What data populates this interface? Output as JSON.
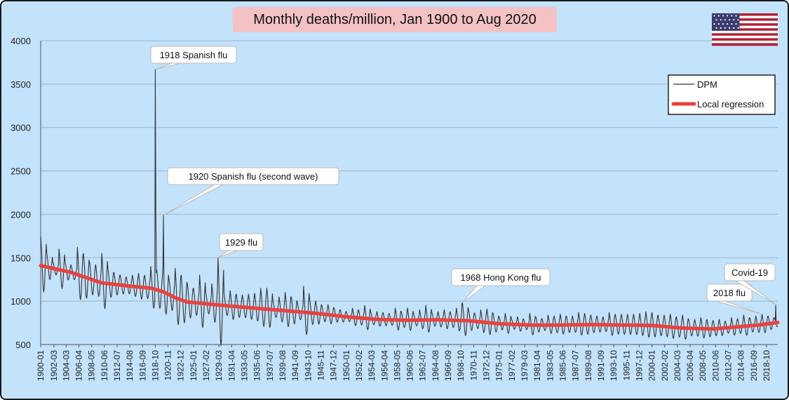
{
  "chart_data": {
    "type": "line",
    "title": "Monthly deaths/million, Jan 1900 to Aug 2020",
    "xlabel": "",
    "ylabel": "",
    "ylim": [
      500,
      4000
    ],
    "yticks": [
      500,
      1000,
      1500,
      2000,
      2500,
      3000,
      3500,
      4000
    ],
    "xlim": [
      "1900-01",
      "2020-08"
    ],
    "xticks": [
      "1900-01",
      "1902-03",
      "1904-03",
      "1906-04",
      "1908-05",
      "1910-06",
      "1912-07",
      "1914-08",
      "1916-09",
      "1918-10",
      "1920-11",
      "1922-12",
      "1925-01",
      "1927-02",
      "1929-03",
      "1931-04",
      "1933-05",
      "1935-06",
      "1937-07",
      "1939-08",
      "1941-09",
      "1943-10",
      "1945-11",
      "1947-12",
      "1950-01",
      "1952-02",
      "1954-03",
      "1956-04",
      "1958-05",
      "1960-06",
      "1962-07",
      "1964-08",
      "1966-09",
      "1968-10",
      "1970-11",
      "1972-12",
      "1975-01",
      "1977-02",
      "1979-03",
      "1981-04",
      "1983-05",
      "1985-06",
      "1987-07",
      "1989-08",
      "1991-09",
      "1993-10",
      "1995-11",
      "1997-12",
      "2000-01",
      "2002-02",
      "2004-03",
      "2006-04",
      "2008-05",
      "2010-06",
      "2012-07",
      "2014-08",
      "2016-09",
      "2018-10"
    ],
    "grid": true,
    "legend_position": "top-right",
    "series": [
      {
        "name": "DPM",
        "color": "#333333",
        "seasonal_peaks": [
          {
            "x": "1900-01",
            "y": 1750
          },
          {
            "x": "1901-01",
            "y": 1550
          },
          {
            "x": "1902-01",
            "y": 1450
          },
          {
            "x": "1903-01",
            "y": 1600
          },
          {
            "x": "1904-01",
            "y": 1450
          },
          {
            "x": "1905-01",
            "y": 1400
          },
          {
            "x": "1906-01",
            "y": 1620
          },
          {
            "x": "1907-01",
            "y": 1550
          },
          {
            "x": "1908-01",
            "y": 1450
          },
          {
            "x": "1909-01",
            "y": 1420
          },
          {
            "x": "1910-01",
            "y": 1550
          },
          {
            "x": "1911-01",
            "y": 1380
          },
          {
            "x": "1912-01",
            "y": 1330
          },
          {
            "x": "1913-01",
            "y": 1300
          },
          {
            "x": "1914-01",
            "y": 1280
          },
          {
            "x": "1915-01",
            "y": 1300
          },
          {
            "x": "1916-01",
            "y": 1320
          },
          {
            "x": "1917-01",
            "y": 1300
          },
          {
            "x": "1918-01",
            "y": 1400
          },
          {
            "x": "1919-01",
            "y": 1360
          },
          {
            "x": "1920-01",
            "y": 1380
          },
          {
            "x": "1921-01",
            "y": 1250
          },
          {
            "x": "1922-01",
            "y": 1380
          },
          {
            "x": "1923-01",
            "y": 1300
          },
          {
            "x": "1924-01",
            "y": 1200
          },
          {
            "x": "1925-01",
            "y": 1150
          },
          {
            "x": "1926-01",
            "y": 1300
          },
          {
            "x": "1927-01",
            "y": 1100
          },
          {
            "x": "1928-01",
            "y": 1200
          },
          {
            "x": "1929-01",
            "y": 1500
          },
          {
            "x": "1930-01",
            "y": 1080
          },
          {
            "x": "1931-01",
            "y": 1120
          },
          {
            "x": "1932-01",
            "y": 1080
          },
          {
            "x": "1933-01",
            "y": 1070
          },
          {
            "x": "1934-01",
            "y": 1080
          },
          {
            "x": "1935-01",
            "y": 1090
          },
          {
            "x": "1936-01",
            "y": 1150
          },
          {
            "x": "1937-01",
            "y": 1150
          },
          {
            "x": "1938-01",
            "y": 1000
          },
          {
            "x": "1939-01",
            "y": 1050
          },
          {
            "x": "1940-01",
            "y": 1100
          },
          {
            "x": "1941-01",
            "y": 1050
          },
          {
            "x": "1942-01",
            "y": 980
          },
          {
            "x": "1943-01",
            "y": 1170
          },
          {
            "x": "1944-01",
            "y": 1020
          },
          {
            "x": "1945-01",
            "y": 1000
          },
          {
            "x": "1946-01",
            "y": 950
          },
          {
            "x": "1947-01",
            "y": 960
          },
          {
            "x": "1948-01",
            "y": 920
          },
          {
            "x": "1949-01",
            "y": 900
          },
          {
            "x": "1950-01",
            "y": 880
          },
          {
            "x": "1951-01",
            "y": 920
          },
          {
            "x": "1952-01",
            "y": 900
          },
          {
            "x": "1953-01",
            "y": 950
          },
          {
            "x": "1954-01",
            "y": 870
          },
          {
            "x": "1955-01",
            "y": 880
          },
          {
            "x": "1956-01",
            "y": 870
          },
          {
            "x": "1957-01",
            "y": 860
          },
          {
            "x": "1958-01",
            "y": 920
          },
          {
            "x": "1959-01",
            "y": 880
          },
          {
            "x": "1960-01",
            "y": 920
          },
          {
            "x": "1961-01",
            "y": 860
          },
          {
            "x": "1962-01",
            "y": 900
          },
          {
            "x": "1963-01",
            "y": 950
          },
          {
            "x": "1964-01",
            "y": 870
          },
          {
            "x": "1965-01",
            "y": 880
          },
          {
            "x": "1966-01",
            "y": 900
          },
          {
            "x": "1967-01",
            "y": 880
          },
          {
            "x": "1968-01",
            "y": 920
          },
          {
            "x": "1969-01",
            "y": 980
          },
          {
            "x": "1970-01",
            "y": 900
          },
          {
            "x": "1971-01",
            "y": 860
          },
          {
            "x": "1972-01",
            "y": 900
          },
          {
            "x": "1973-01",
            "y": 910
          },
          {
            "x": "1974-01",
            "y": 860
          },
          {
            "x": "1975-01",
            "y": 820
          },
          {
            "x": "1976-01",
            "y": 860
          },
          {
            "x": "1977-01",
            "y": 800
          },
          {
            "x": "1978-01",
            "y": 820
          },
          {
            "x": "1979-01",
            "y": 790
          },
          {
            "x": "1980-01",
            "y": 860
          },
          {
            "x": "1981-01",
            "y": 820
          },
          {
            "x": "1982-01",
            "y": 800
          },
          {
            "x": "1983-01",
            "y": 840
          },
          {
            "x": "1984-01",
            "y": 830
          },
          {
            "x": "1985-01",
            "y": 850
          },
          {
            "x": "1986-01",
            "y": 830
          },
          {
            "x": "1987-01",
            "y": 830
          },
          {
            "x": "1988-01",
            "y": 870
          },
          {
            "x": "1989-01",
            "y": 860
          },
          {
            "x": "1990-01",
            "y": 840
          },
          {
            "x": "1991-01",
            "y": 830
          },
          {
            "x": "1992-01",
            "y": 820
          },
          {
            "x": "1993-01",
            "y": 870
          },
          {
            "x": "1994-01",
            "y": 850
          },
          {
            "x": "1995-01",
            "y": 850
          },
          {
            "x": "1996-01",
            "y": 850
          },
          {
            "x": "1997-01",
            "y": 850
          },
          {
            "x": "1998-01",
            "y": 860
          },
          {
            "x": "1999-01",
            "y": 880
          },
          {
            "x": "2000-01",
            "y": 870
          },
          {
            "x": "2001-01",
            "y": 840
          },
          {
            "x": "2002-01",
            "y": 840
          },
          {
            "x": "2003-01",
            "y": 850
          },
          {
            "x": "2004-01",
            "y": 820
          },
          {
            "x": "2005-01",
            "y": 840
          },
          {
            "x": "2006-01",
            "y": 790
          },
          {
            "x": "2007-01",
            "y": 790
          },
          {
            "x": "2008-01",
            "y": 810
          },
          {
            "x": "2009-01",
            "y": 790
          },
          {
            "x": "2010-01",
            "y": 780
          },
          {
            "x": "2011-01",
            "y": 790
          },
          {
            "x": "2012-01",
            "y": 770
          },
          {
            "x": "2013-01",
            "y": 810
          },
          {
            "x": "2014-01",
            "y": 800
          },
          {
            "x": "2015-01",
            "y": 840
          },
          {
            "x": "2016-01",
            "y": 810
          },
          {
            "x": "2017-01",
            "y": 830
          },
          {
            "x": "2018-01",
            "y": 850
          },
          {
            "x": "2019-01",
            "y": 830
          },
          {
            "x": "2020-01",
            "y": 810
          }
        ],
        "notable_points": [
          {
            "x": "1918-10",
            "y": 3670
          },
          {
            "x": "1920-02",
            "y": 1990
          },
          {
            "x": "1929-01",
            "y": 1500
          },
          {
            "x": "1968-12",
            "y": 980
          },
          {
            "x": "2018-01",
            "y": 850
          },
          {
            "x": "2020-04",
            "y": 960
          }
        ]
      },
      {
        "name": "Local regression",
        "color": "#e8423f",
        "points": [
          {
            "x": "1900-01",
            "y": 1410
          },
          {
            "x": "1905-01",
            "y": 1330
          },
          {
            "x": "1910-01",
            "y": 1210
          },
          {
            "x": "1915-01",
            "y": 1170
          },
          {
            "x": "1918-01",
            "y": 1150
          },
          {
            "x": "1920-01",
            "y": 1110
          },
          {
            "x": "1922-01",
            "y": 1040
          },
          {
            "x": "1924-01",
            "y": 990
          },
          {
            "x": "1927-01",
            "y": 970
          },
          {
            "x": "1930-01",
            "y": 950
          },
          {
            "x": "1935-01",
            "y": 920
          },
          {
            "x": "1940-01",
            "y": 890
          },
          {
            "x": "1945-01",
            "y": 860
          },
          {
            "x": "1950-01",
            "y": 820
          },
          {
            "x": "1955-01",
            "y": 790
          },
          {
            "x": "1960-01",
            "y": 780
          },
          {
            "x": "1965-01",
            "y": 785
          },
          {
            "x": "1970-01",
            "y": 775
          },
          {
            "x": "1975-01",
            "y": 740
          },
          {
            "x": "1980-01",
            "y": 725
          },
          {
            "x": "1985-01",
            "y": 725
          },
          {
            "x": "1990-01",
            "y": 730
          },
          {
            "x": "1995-01",
            "y": 725
          },
          {
            "x": "2000-01",
            "y": 720
          },
          {
            "x": "2005-01",
            "y": 690
          },
          {
            "x": "2010-01",
            "y": 680
          },
          {
            "x": "2015-01",
            "y": 710
          },
          {
            "x": "2018-01",
            "y": 730
          },
          {
            "x": "2020-08",
            "y": 755
          }
        ]
      }
    ],
    "annotations": [
      {
        "text": "1918 Spanish flu",
        "x": "1918-10",
        "y": 3670
      },
      {
        "text": "1920 Spanish flu (second wave)",
        "x": "1920-02",
        "y": 1990
      },
      {
        "text": "1929 flu",
        "x": "1929-01",
        "y": 1500
      },
      {
        "text": "1968 Hong Kong flu",
        "x": "1968-12",
        "y": 980
      },
      {
        "text": "2018 flu",
        "x": "2018-01",
        "y": 850
      },
      {
        "text": "Covid-19",
        "x": "2020-04",
        "y": 960
      }
    ]
  },
  "flag": {
    "name": "us-flag-icon",
    "colors": {
      "red": "#b22234",
      "white": "#ffffff",
      "blue": "#3c3b6e"
    }
  }
}
